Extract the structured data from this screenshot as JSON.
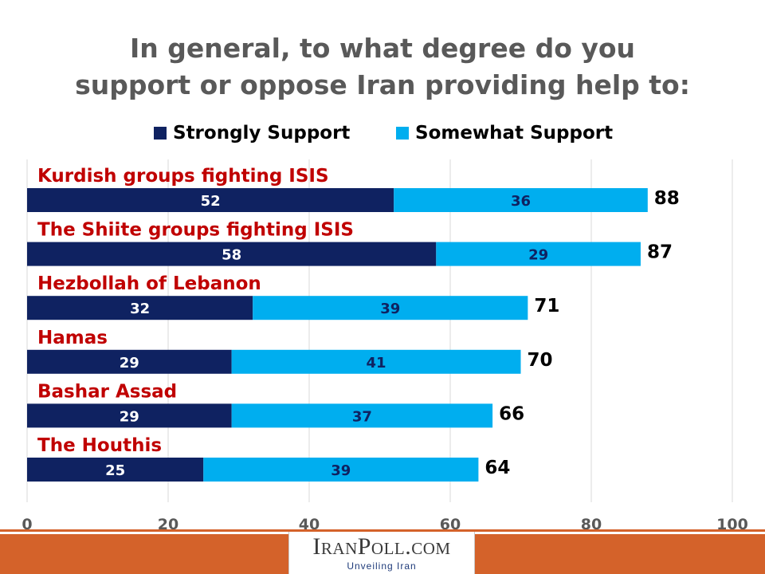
{
  "title_lines": [
    "In general, to what degree do you",
    "support or oppose Iran providing help to:"
  ],
  "colors": {
    "strong": "#0f2261",
    "somewhat": "#00aeef",
    "category_label": "#c00000",
    "title": "#595959",
    "footer": "#d4622a"
  },
  "logo": {
    "name": "IranPoll.com",
    "tagline": "Unveiling Iran"
  },
  "chart_data": {
    "type": "bar",
    "orientation": "horizontal",
    "stacked": true,
    "categories": [
      "Kurdish groups fighting ISIS",
      "The Shiite groups fighting ISIS",
      "Hezbollah of Lebanon",
      "Hamas",
      "Bashar Assad",
      "The Houthis"
    ],
    "series": [
      {
        "name": "Strongly Support",
        "values": [
          52,
          58,
          32,
          29,
          29,
          25
        ]
      },
      {
        "name": "Somewhat Support",
        "values": [
          36,
          29,
          39,
          41,
          37,
          39
        ]
      }
    ],
    "totals": [
      88,
      87,
      71,
      70,
      66,
      64
    ],
    "xlim": [
      0,
      100
    ],
    "xticks": [
      0,
      20,
      40,
      60,
      80,
      100
    ],
    "grid": true,
    "legend": "top"
  }
}
